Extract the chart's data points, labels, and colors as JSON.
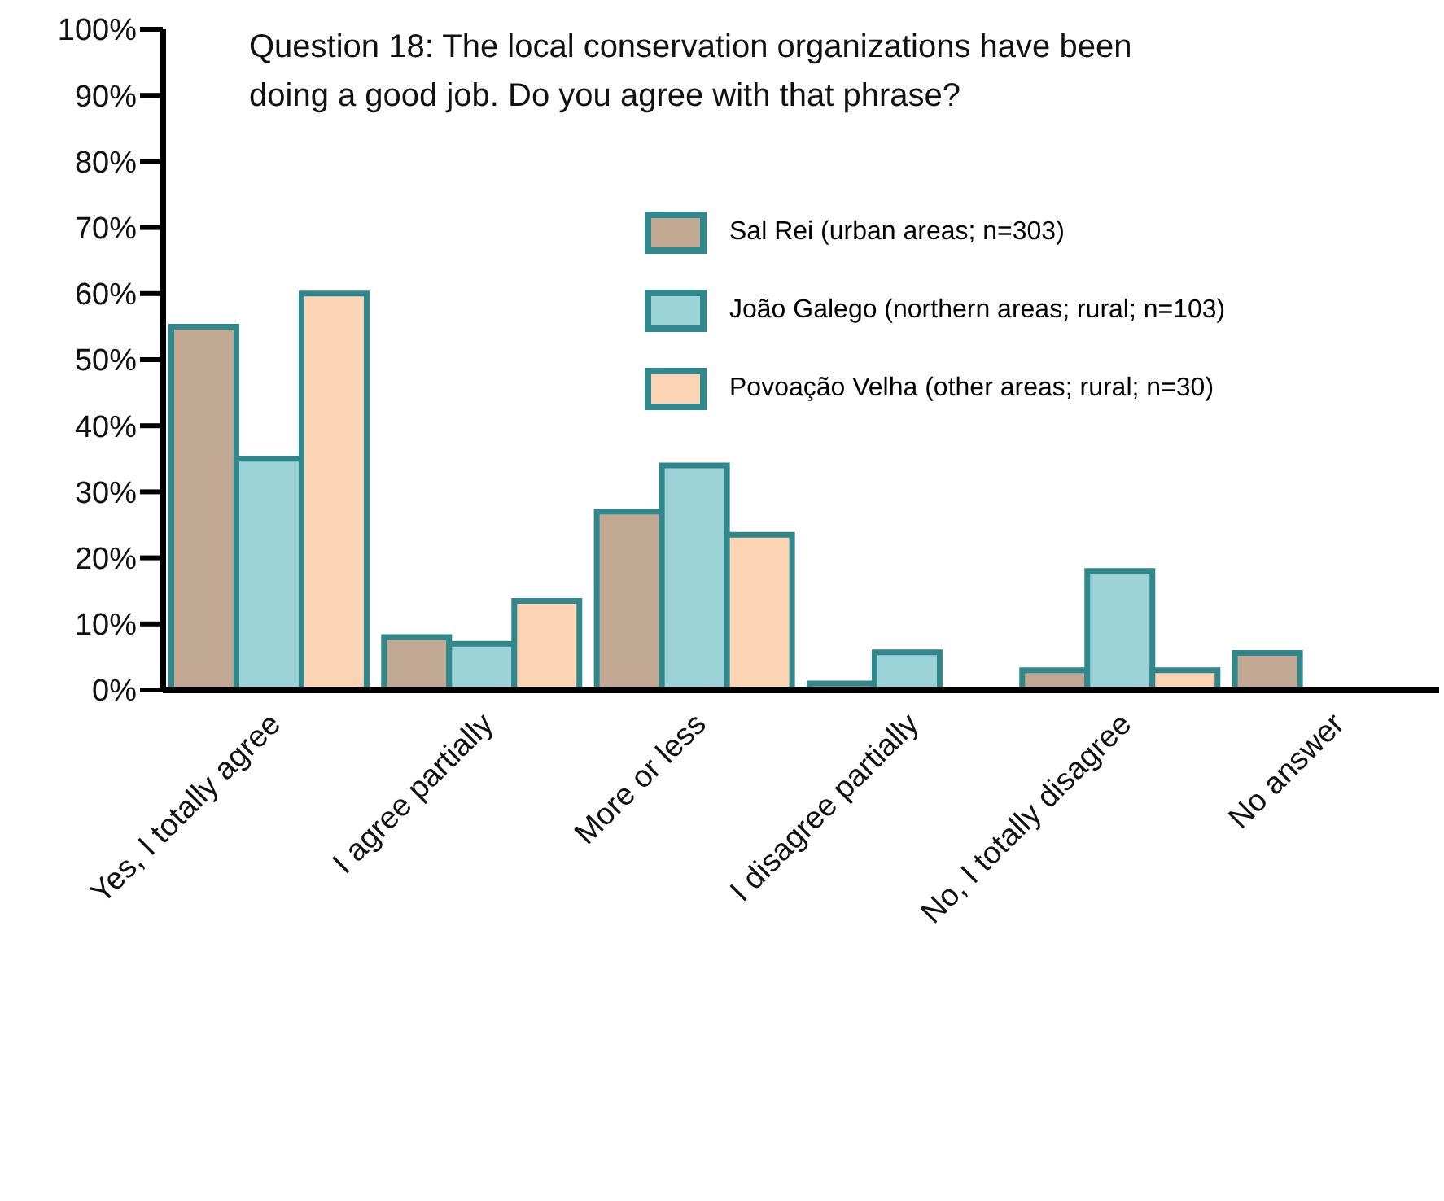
{
  "chart_data": {
    "type": "bar",
    "title": "Question 18: The local conservation organizations have been doing a good job. Do you agree with that phrase?",
    "categories": [
      "Yes, I totally agree",
      "I agree partially",
      "More or less",
      "I disagree partially",
      "No, I totally disagree",
      "No answer"
    ],
    "series": [
      {
        "name": "Sal Rei (urban areas; n=303)",
        "color": "#c1a892",
        "values": [
          55,
          8,
          27,
          1,
          3,
          5.6
        ]
      },
      {
        "name": "João Galego (northern areas; rural; n=103)",
        "color": "#9bd3d8",
        "values": [
          35,
          7,
          34,
          5.7,
          18,
          0
        ]
      },
      {
        "name": "Povoação Velha (other areas; rural; n=30)",
        "color": "#fcd4b4",
        "values": [
          60,
          13.5,
          23.5,
          0,
          3,
          0
        ]
      }
    ],
    "ylim": [
      0,
      100
    ],
    "yticks": [
      {
        "value": 0,
        "label": "0%"
      },
      {
        "value": 10,
        "label": "10%"
      },
      {
        "value": 20,
        "label": "20%"
      },
      {
        "value": 30,
        "label": "30%"
      },
      {
        "value": 40,
        "label": "40%"
      },
      {
        "value": 50,
        "label": "50%"
      },
      {
        "value": 60,
        "label": "60%"
      },
      {
        "value": 70,
        "label": "70%"
      },
      {
        "value": 80,
        "label": "80%"
      },
      {
        "value": 90,
        "label": "90%"
      },
      {
        "value": 100,
        "label": "100%"
      }
    ],
    "grid": false,
    "legend": "top right"
  }
}
